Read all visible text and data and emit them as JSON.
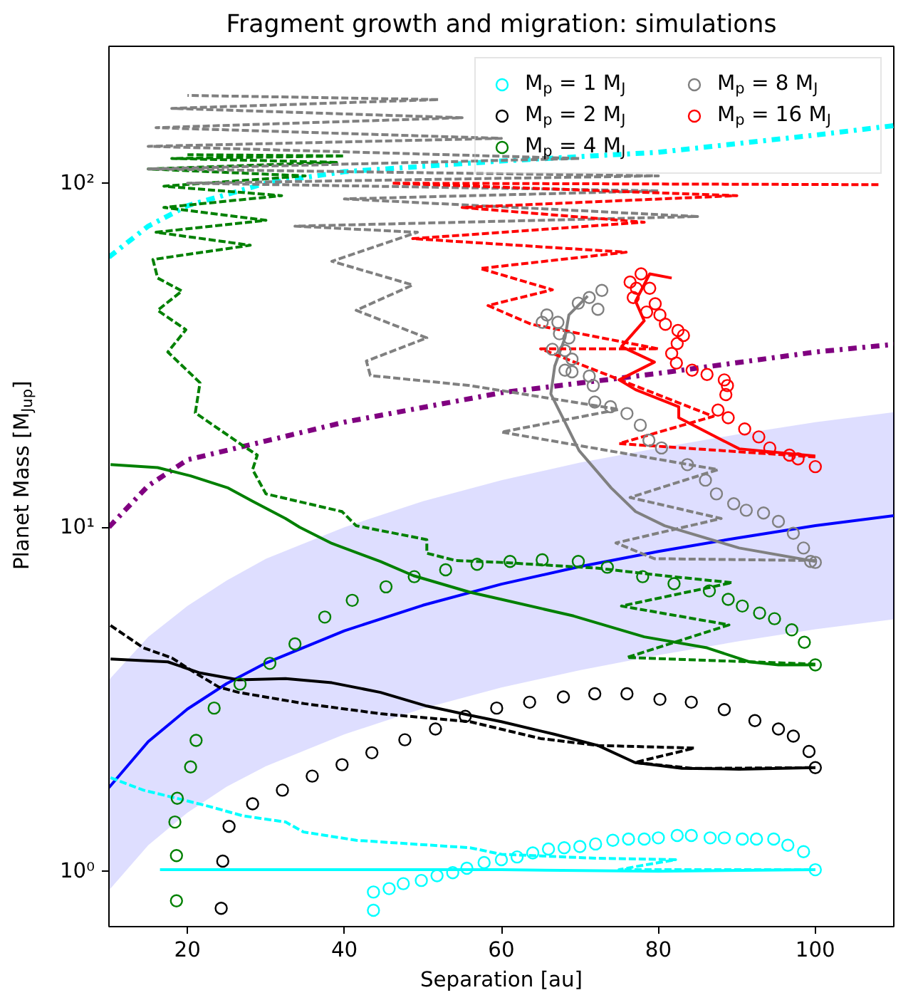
{
  "chart_data": {
    "type": "line",
    "title": "Fragment growth and migration: simulations",
    "xlabel": "Separation [au]",
    "ylabel": "Planet Mass [M$_{Jup}$]",
    "log": "y",
    "xlim": [
      10,
      110
    ],
    "ylim": [
      0.69,
      250
    ],
    "xticks": [
      20,
      40,
      60,
      80,
      100
    ],
    "yticks": [
      {
        "value": 1,
        "label": "10⁰"
      },
      {
        "value": 10,
        "label": "10¹"
      },
      {
        "value": 100,
        "label": "10²"
      }
    ],
    "grid": false,
    "legend": "top right",
    "marker": "none",
    "series": [
      {
        "color": "#0000ff",
        "line_style": "solid",
        "x": [
          10,
          15,
          20,
          25,
          30,
          40,
          50,
          60,
          70,
          80,
          90,
          100,
          110
        ],
        "values": [
          1.75,
          2.38,
          2.96,
          3.51,
          4.03,
          5.0,
          5.93,
          6.83,
          7.68,
          8.5,
          9.3,
          10.1,
          10.8
        ],
        "lower": [
          0.88,
          1.19,
          1.48,
          1.76,
          2.02,
          2.5,
          2.97,
          3.42,
          3.84,
          4.25,
          4.65,
          5.05,
          5.4
        ],
        "upper": [
          3.6,
          4.8,
          5.9,
          7.0,
          8.1,
          10.0,
          11.9,
          13.7,
          15.4,
          17.0,
          18.6,
          20.2,
          21.6
        ]
      },
      {
        "color": "#00ffff",
        "line_style": "dashdot",
        "x": [
          10,
          15,
          20,
          30,
          40,
          60,
          80,
          100,
          110
        ],
        "values": [
          61,
          75,
          86,
          100,
          108,
          116,
          123,
          138,
          147
        ]
      },
      {
        "color": "#800080",
        "line_style": "dashdot",
        "x": [
          10,
          15,
          20,
          40,
          60,
          80,
          100,
          110
        ],
        "values": [
          10,
          13.2,
          15.7,
          20.2,
          24.6,
          28,
          32.3,
          34
        ]
      },
      {
        "color": "#00ffff",
        "line_style": "solid",
        "x": [
          16.5,
          40,
          60,
          80,
          100
        ],
        "values": [
          1.01,
          1.01,
          1.01,
          1.0,
          1.01
        ]
      },
      {
        "color": "#00ffff",
        "line_style": "dashed",
        "x": [
          10.2,
          14.4,
          18.6,
          22.9,
          27,
          32.5,
          34.8,
          41.5,
          56,
          60,
          72.3,
          82.2,
          78,
          75,
          100
        ],
        "values": [
          1.87,
          1.72,
          1.63,
          1.54,
          1.45,
          1.39,
          1.3,
          1.23,
          1.17,
          1.12,
          1.09,
          1.08,
          1.04,
          1.01,
          1.01
        ]
      },
      {
        "color": "#000000",
        "line_style": "solid",
        "x": [
          10.2,
          17.5,
          21.6,
          26.5,
          32.5,
          38.4,
          44.6,
          50.5,
          56,
          60,
          66.8,
          72.3,
          77,
          83,
          90.3,
          100
        ],
        "values": [
          4.14,
          4.06,
          3.77,
          3.6,
          3.63,
          3.53,
          3.31,
          3.02,
          2.84,
          2.72,
          2.5,
          2.32,
          2.07,
          1.99,
          1.98,
          2.0
        ]
      },
      {
        "color": "#000000",
        "line_style": "dashed",
        "x": [
          10.2,
          14.4,
          18,
          21,
          24,
          26.5,
          34.9,
          44.6,
          56,
          65,
          72.3,
          84.6,
          77,
          84.4,
          100
        ],
        "values": [
          5.18,
          4.46,
          4.17,
          3.77,
          3.43,
          3.31,
          3.07,
          2.87,
          2.72,
          2.43,
          2.32,
          2.28,
          2.07,
          1.99,
          2.0
        ]
      },
      {
        "color": "#008000",
        "line_style": "solid",
        "x": [
          10.2,
          16.2,
          20.4,
          25.2,
          28.3,
          32.5,
          34.3,
          38.4,
          44.6,
          48.8,
          56,
          60,
          69.2,
          78.2,
          86.2,
          91.6,
          95.3,
          100
        ],
        "values": [
          15.2,
          14.9,
          14.1,
          13.0,
          11.9,
          10.6,
          10.0,
          8.97,
          7.95,
          7.23,
          6.47,
          6.17,
          5.52,
          4.8,
          4.46,
          4.06,
          3.98,
          3.98
        ]
      },
      {
        "color": "#008000",
        "line_style": "dashed",
        "x": [
          100,
          76,
          89,
          75.3,
          89.4,
          81.3,
          72.3,
          60,
          54.2,
          50.5,
          50.5,
          41.5,
          39.7,
          30,
          28.3,
          28.9,
          27,
          21,
          21.6,
          17.5,
          19.8,
          16.2,
          19.3,
          16.2,
          15.6,
          28,
          16,
          30,
          17,
          32,
          17,
          35,
          15,
          39,
          18,
          40,
          20
        ],
        "values": [
          4.0,
          4.18,
          5.2,
          5.9,
          6.9,
          7.2,
          7.6,
          7.9,
          8.0,
          8.4,
          9.2,
          10.1,
          11.1,
          12.5,
          14.7,
          16.2,
          17.3,
          21.5,
          26.3,
          32.3,
          37.5,
          42.7,
          48.6,
          53,
          60,
          66,
          72,
          78,
          85,
          92,
          98,
          105,
          110,
          115,
          118,
          120,
          121
        ]
      },
      {
        "color": "#808080",
        "line_style": "solid",
        "x": [
          100,
          90.3,
          80.8,
          77.1,
          74,
          69.9,
          68.1,
          66.3,
          66.8,
          68.1,
          68.6,
          71
        ],
        "values": [
          7.95,
          8.7,
          10.1,
          11.1,
          13.0,
          16.7,
          20.2,
          24.4,
          29.4,
          35.5,
          41.4,
          47
        ]
      },
      {
        "color": "#808080",
        "line_style": "dashed",
        "x": [
          100,
          79.5,
          74.6,
          88,
          76.4,
          87.6,
          60,
          75,
          56,
          43.3,
          42.8,
          50.5,
          41.5,
          48.7,
          38.4,
          49.3,
          33.7,
          85,
          40,
          80,
          20,
          80,
          15,
          70,
          15,
          60,
          16,
          55,
          18,
          52,
          20
        ],
        "values": [
          8.0,
          8.1,
          9.0,
          10.6,
          12.2,
          14.7,
          18.9,
          22,
          25.8,
          27.6,
          30.4,
          35.5,
          42.7,
          50.6,
          59.3,
          72,
          75,
          80,
          90,
          95,
          100,
          105,
          110,
          118,
          128,
          135,
          145,
          155,
          165,
          175,
          180
        ]
      },
      {
        "color": "#ff0000",
        "line_style": "solid",
        "x": [
          100,
          90.3,
          82.6,
          82.6,
          77.1,
          75,
          79.5,
          75.3,
          78.2,
          77.1,
          78.9,
          81.7
        ],
        "values": [
          16.1,
          16.9,
          20.8,
          22.4,
          25.1,
          26.8,
          30.2,
          33.5,
          39.8,
          45.4,
          54.5,
          53
        ]
      },
      {
        "color": "#ff0000",
        "line_style": "dashed",
        "x": [
          100,
          75,
          87,
          65,
          80,
          63.8,
          58.3,
          66.5,
          57.3,
          75.9,
          48.7,
          78.2,
          55,
          90,
          46,
          108.4
        ],
        "values": [
          16,
          17.5,
          21,
          33,
          33,
          38.9,
          44.1,
          49,
          56.5,
          63,
          69,
          77,
          85,
          92,
          100,
          99
        ]
      },
      {
        "type": "scatter",
        "name": "M$_{p}$ = 1 M$_{J}$",
        "color": "#00ffff",
        "marker": "circle",
        "x": [
          43.7,
          43.7,
          45.7,
          47.5,
          49.8,
          51.8,
          53.8,
          55.6,
          57.8,
          60,
          62,
          64,
          66,
          68,
          70,
          72,
          74.2,
          76.2,
          78.2,
          80,
          82.4,
          84.2,
          86.6,
          88.4,
          90.7,
          92.5,
          94.7,
          96.5,
          98.5,
          100
        ],
        "values": [
          0.77,
          0.87,
          0.89,
          0.92,
          0.94,
          0.97,
          0.99,
          1.02,
          1.06,
          1.08,
          1.1,
          1.13,
          1.16,
          1.17,
          1.18,
          1.2,
          1.23,
          1.24,
          1.24,
          1.25,
          1.27,
          1.27,
          1.25,
          1.25,
          1.24,
          1.24,
          1.24,
          1.19,
          1.14,
          1.01
        ]
      },
      {
        "type": "scatter",
        "name": "M$_{p}$ = 2 M$_{J}$",
        "color": "#000000",
        "marker": "circle",
        "x": [
          24.3,
          24.5,
          25.3,
          28.3,
          32.1,
          35.9,
          39.7,
          43.5,
          47.7,
          51.6,
          55.4,
          59.4,
          63.6,
          67.9,
          71.9,
          76,
          80.2,
          84.2,
          88.4,
          92.3,
          95.3,
          97.2,
          99.2,
          100
        ],
        "values": [
          0.78,
          1.07,
          1.35,
          1.57,
          1.72,
          1.89,
          2.04,
          2.21,
          2.41,
          2.59,
          2.82,
          2.98,
          3.1,
          3.21,
          3.28,
          3.28,
          3.16,
          3.1,
          2.95,
          2.74,
          2.59,
          2.47,
          2.23,
          2.0
        ]
      },
      {
        "type": "scatter",
        "name": "M$_{p}$ = 4 M$_{J}$",
        "color": "#008000",
        "marker": "circle",
        "x": [
          18.6,
          18.6,
          18.4,
          18.7,
          20.4,
          21.1,
          23.4,
          26.7,
          30.5,
          33.7,
          37.5,
          41,
          45.3,
          48.9,
          52.9,
          56.9,
          61.1,
          65.2,
          69.8,
          73.5,
          78,
          82,
          86.5,
          88.9,
          90.7,
          92.9,
          94.8,
          97,
          98.6,
          100
        ],
        "values": [
          0.82,
          1.11,
          1.39,
          1.63,
          2.01,
          2.4,
          2.98,
          3.5,
          4.02,
          4.58,
          5.48,
          6.13,
          6.71,
          7.18,
          7.52,
          7.8,
          7.95,
          8.04,
          7.95,
          7.65,
          7.18,
          6.85,
          6.53,
          6.17,
          5.9,
          5.63,
          5.42,
          5.03,
          4.63,
          3.98
        ]
      },
      {
        "type": "scatter",
        "name": "M$_{p}$ = 8 M$_{J}$",
        "color": "#808080",
        "marker": "circle",
        "x": [
          72.8,
          71.2,
          72.3,
          69.8,
          65.8,
          65.2,
          67.2,
          67.4,
          68.6,
          66.5,
          68.1,
          69,
          68.1,
          69,
          71.2,
          71.7,
          71.9,
          73.9,
          76,
          77.7,
          78.8,
          80.4,
          83.7,
          86,
          87.4,
          89.6,
          91.2,
          93.4,
          95.3,
          97.2,
          98.5,
          99.4,
          100
        ],
        "values": [
          48.8,
          46.5,
          43,
          44.8,
          41.4,
          39.4,
          39.4,
          36.5,
          35.5,
          32.9,
          32.6,
          30.8,
          28.6,
          28.3,
          27.5,
          25.8,
          23.1,
          22.4,
          21.4,
          19.8,
          17.9,
          17.0,
          15.2,
          13.7,
          12.5,
          11.7,
          11.2,
          11.0,
          10.4,
          9.6,
          8.7,
          7.95,
          7.9
        ]
      },
      {
        "type": "scatter",
        "name": "M$_{p}$ = 16 M$_{J}$",
        "color": "#ff0000",
        "marker": "circle",
        "x": [
          77.8,
          76.4,
          77.2,
          78.9,
          76.8,
          79.6,
          78.5,
          80.2,
          80.9,
          82.5,
          83.2,
          82.4,
          81.7,
          82.3,
          84.3,
          86.2,
          88.4,
          88.8,
          88.6,
          87.6,
          88.9,
          91.0,
          92.8,
          94.2,
          96.7,
          97.8,
          100
        ],
        "values": [
          54.5,
          51.6,
          49.5,
          49.5,
          46.5,
          44.6,
          42.2,
          41.4,
          38.9,
          37.3,
          36.1,
          34.2,
          32.0,
          30.0,
          28.6,
          27.8,
          26.8,
          25.8,
          24.3,
          21.9,
          20.8,
          19.3,
          18.3,
          17.0,
          16.2,
          15.8,
          15.0
        ]
      }
    ]
  }
}
